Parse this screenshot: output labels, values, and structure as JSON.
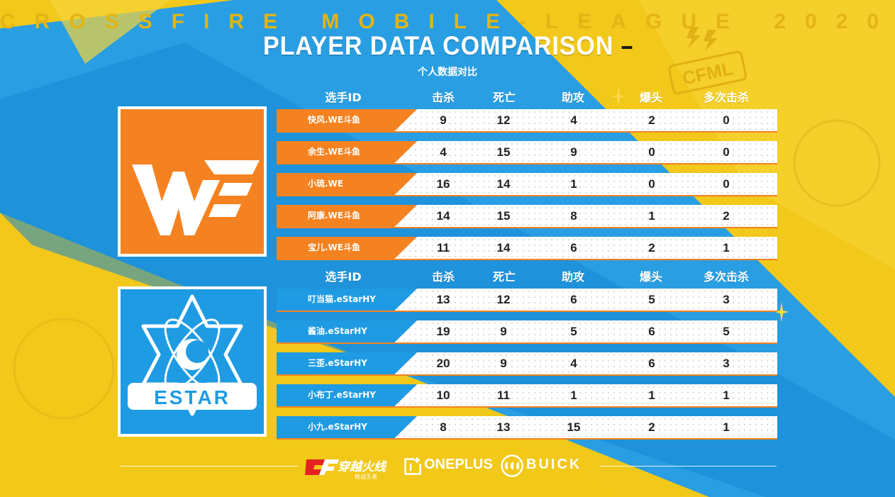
{
  "colors": {
    "we_orange": "#f58220",
    "estar_blue": "#1e9be3",
    "bg_yellow": "#f2c81a",
    "white": "#ffffff"
  },
  "header": {
    "watermark": "CROSSFIRE MOBILE-LEAGUE 2020",
    "title": "PLAYER DATA COMPARISON",
    "subtitle": "个人数据对比",
    "league_badge": "CFML"
  },
  "columns": [
    "选手ID",
    "击杀",
    "死亡",
    "助攻",
    "爆头",
    "多次击杀"
  ],
  "teams": [
    {
      "logo_text": "WE",
      "players": [
        {
          "name": "快风.WE斗鱼",
          "stats": [
            9,
            12,
            4,
            2,
            0
          ]
        },
        {
          "name": "余生.WE斗鱼",
          "stats": [
            4,
            15,
            9,
            0,
            0
          ]
        },
        {
          "name": "小琉.WE",
          "stats": [
            16,
            14,
            1,
            0,
            0
          ]
        },
        {
          "name": "阿康.WE斗鱼",
          "stats": [
            14,
            15,
            8,
            1,
            2
          ]
        },
        {
          "name": "宝儿.WE斗鱼",
          "stats": [
            11,
            14,
            6,
            2,
            1
          ]
        }
      ]
    },
    {
      "logo_text": "ESTAR",
      "players": [
        {
          "name": "叮当猫.eStarHY",
          "stats": [
            13,
            12,
            6,
            5,
            3
          ]
        },
        {
          "name": "酱油.eStarHY",
          "stats": [
            19,
            9,
            5,
            6,
            5
          ]
        },
        {
          "name": "三歪.eStarHY",
          "stats": [
            20,
            9,
            4,
            6,
            3
          ]
        },
        {
          "name": "小布丁.eStarHY",
          "stats": [
            10,
            11,
            1,
            1,
            1
          ]
        },
        {
          "name": "小九.eStarHY",
          "stats": [
            8,
            13,
            15,
            2,
            1
          ]
        }
      ]
    }
  ],
  "footer": {
    "sponsor_1": "穿越火线",
    "sponsor_1_sub": "枪战王者",
    "sponsor_2": "ONEPLUS",
    "sponsor_3": "BUICK"
  }
}
